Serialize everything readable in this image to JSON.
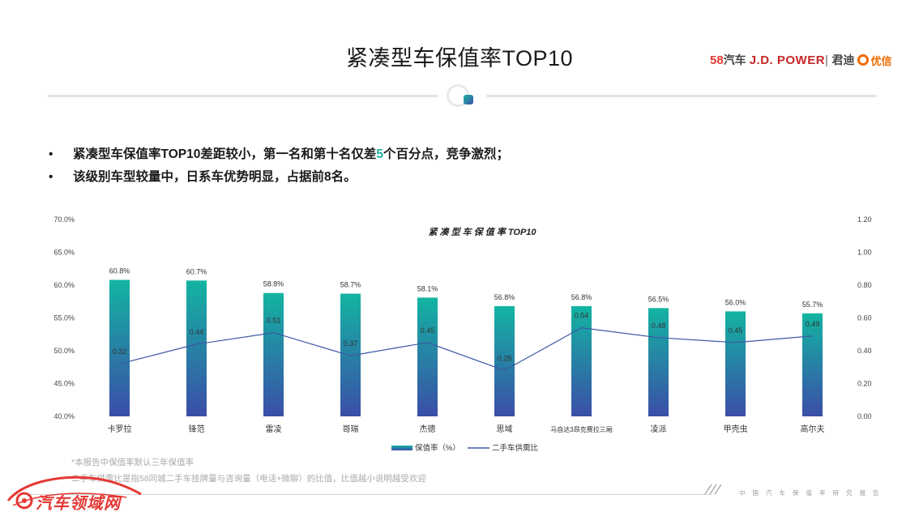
{
  "page": {
    "title": "紧凑型车保值率TOP10",
    "logos": {
      "logo_58_num": "58",
      "logo_58_text": "汽车",
      "jd_power": "J.D. POWER",
      "jundi": "君迪",
      "youxin": "优信"
    },
    "bullets": [
      {
        "prefix": "紧凑型车保值率TOP10差距较小，第一名和第十名仅差",
        "highlight": "5",
        "suffix": "个百分点，竞争激烈；"
      },
      {
        "prefix": "该级别车型较量中，日系车优势明显，占据前8名。",
        "highlight": "",
        "suffix": ""
      }
    ],
    "footnotes": [
      "*本报告中保值率默认三年保值率",
      "二手车供需比是指58同城二手车挂牌量与咨询量（电话+微聊）的比值，比值越小说明越受欢迎"
    ],
    "footer_text": "中国汽车保值率研究报告",
    "watermark_text": "汽车领域网",
    "colors": {
      "bar_top": "#13b4a2",
      "bar_bottom": "#3b4ea8",
      "line": "#3d58a6",
      "highlight": "#17b0a0"
    }
  },
  "chart_data": {
    "type": "bar",
    "title": "紧 凑 型 车 保 值 率 TOP10",
    "categories": [
      "卡罗拉",
      "锋范",
      "雷凌",
      "哥瑞",
      "杰德",
      "思域",
      "马自达3昂克赛拉三厢",
      "凌派",
      "甲壳虫",
      "高尔夫"
    ],
    "series": [
      {
        "name": "保值率（%）",
        "type": "bar",
        "axis": "left",
        "values": [
          60.8,
          60.7,
          58.8,
          58.7,
          58.1,
          56.8,
          56.8,
          56.5,
          56.0,
          55.7
        ],
        "labels": [
          "60.8%",
          "60.7%",
          "58.8%",
          "58.7%",
          "58.1%",
          "56.8%",
          "56.8%",
          "56.5%",
          "56.0%",
          "55.7%"
        ]
      },
      {
        "name": "二手车供需比",
        "type": "line",
        "axis": "right",
        "values": [
          0.32,
          0.44,
          0.51,
          0.37,
          0.45,
          0.28,
          0.54,
          0.48,
          0.45,
          0.49
        ],
        "labels": [
          "0.32",
          "0.44",
          "0.51",
          "0.37",
          "0.45",
          "0.28",
          "0.54",
          "0.48",
          "0.45",
          "0.49"
        ]
      }
    ],
    "y_left": {
      "min": 40,
      "max": 70,
      "ticks": [
        "40.0%",
        "45.0%",
        "50.0%",
        "55.0%",
        "60.0%",
        "65.0%",
        "70.0%"
      ]
    },
    "y_right": {
      "min": 0,
      "max": 1.2,
      "ticks": [
        "0.00",
        "0.20",
        "0.40",
        "0.60",
        "0.80",
        "1.00",
        "1.20"
      ]
    },
    "grid": false,
    "legend": "bottom"
  }
}
